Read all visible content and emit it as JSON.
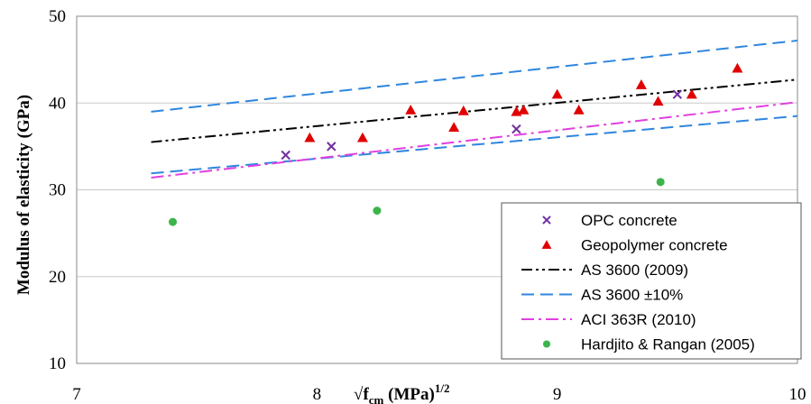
{
  "chart_data": {
    "type": "scatter",
    "title": "",
    "xlabel": "√f_cm (MPa)^1/2",
    "xlabel_parts": {
      "root": "√",
      "f": "f",
      "sub": "cm",
      "unit": " (MPa)",
      "sup": "1/2"
    },
    "ylabel": "Modulus of elasticity (GPa)",
    "xlim": [
      7,
      10
    ],
    "ylim": [
      10,
      50
    ],
    "xticks": [
      "7",
      "8",
      "9",
      "10"
    ],
    "yticks": [
      "10",
      "20",
      "30",
      "40",
      "50"
    ],
    "grid": "horizontal",
    "legend_position": "bottom-right",
    "series": [
      {
        "name": "OPC concrete",
        "kind": "points",
        "marker": "x",
        "color": "#7030a0",
        "points": [
          [
            7.87,
            34.0
          ],
          [
            8.06,
            35.0
          ],
          [
            8.83,
            37.0
          ],
          [
            9.5,
            41.0
          ]
        ]
      },
      {
        "name": "Geopolymer concrete",
        "kind": "points",
        "marker": "triangle",
        "color": "#e00000",
        "points": [
          [
            7.97,
            36.0
          ],
          [
            8.19,
            36.0
          ],
          [
            8.39,
            39.2
          ],
          [
            8.57,
            37.2
          ],
          [
            8.61,
            39.1
          ],
          [
            8.83,
            39.0
          ],
          [
            8.86,
            39.2
          ],
          [
            9.0,
            41.0
          ],
          [
            9.09,
            39.2
          ],
          [
            9.35,
            42.1
          ],
          [
            9.42,
            40.2
          ],
          [
            9.56,
            41.0
          ],
          [
            9.75,
            44.0
          ]
        ]
      },
      {
        "name": "AS 3600 (2009)",
        "kind": "line",
        "dash": "dashdotdot",
        "color": "#000000",
        "points": [
          [
            7.31,
            35.5
          ],
          [
            10.0,
            42.7
          ]
        ]
      },
      {
        "name": "AS 3600 ±10%",
        "kind": "line",
        "dash": "dash",
        "color": "#2e86de",
        "points": [
          [
            7.31,
            39.0
          ],
          [
            10.0,
            47.2
          ]
        ]
      },
      {
        "name": "AS 3600 ±10% (lower)",
        "kind": "line",
        "dash": "dash",
        "color": "#2e86de",
        "points": [
          [
            7.31,
            31.9
          ],
          [
            10.0,
            38.5
          ]
        ]
      },
      {
        "name": "ACI 363R (2010)",
        "kind": "line",
        "dash": "dashdot",
        "color": "#e040e0",
        "points": [
          [
            7.31,
            31.4
          ],
          [
            10.0,
            40.1
          ]
        ]
      },
      {
        "name": "Hardjito & Rangan (2005)",
        "kind": "points",
        "marker": "dot",
        "color": "#3cb44b",
        "points": [
          [
            7.4,
            26.3
          ],
          [
            8.25,
            27.6
          ],
          [
            9.43,
            30.9
          ]
        ]
      }
    ],
    "legend": [
      {
        "label": "OPC concrete",
        "marker": "x",
        "color": "#7030a0"
      },
      {
        "label": "Geopolymer concrete",
        "marker": "triangle",
        "color": "#e00000"
      },
      {
        "label": "AS 3600 (2009)",
        "marker": "line",
        "dash": "dashdotdot",
        "color": "#000000"
      },
      {
        "label": "AS 3600 ±10%",
        "marker": "line",
        "dash": "dash",
        "color": "#2e86de"
      },
      {
        "label": "ACI 363R (2010)",
        "marker": "line",
        "dash": "dashdot",
        "color": "#e040e0"
      },
      {
        "label": "Hardjito & Rangan (2005)",
        "marker": "dot",
        "color": "#3cb44b"
      }
    ]
  }
}
